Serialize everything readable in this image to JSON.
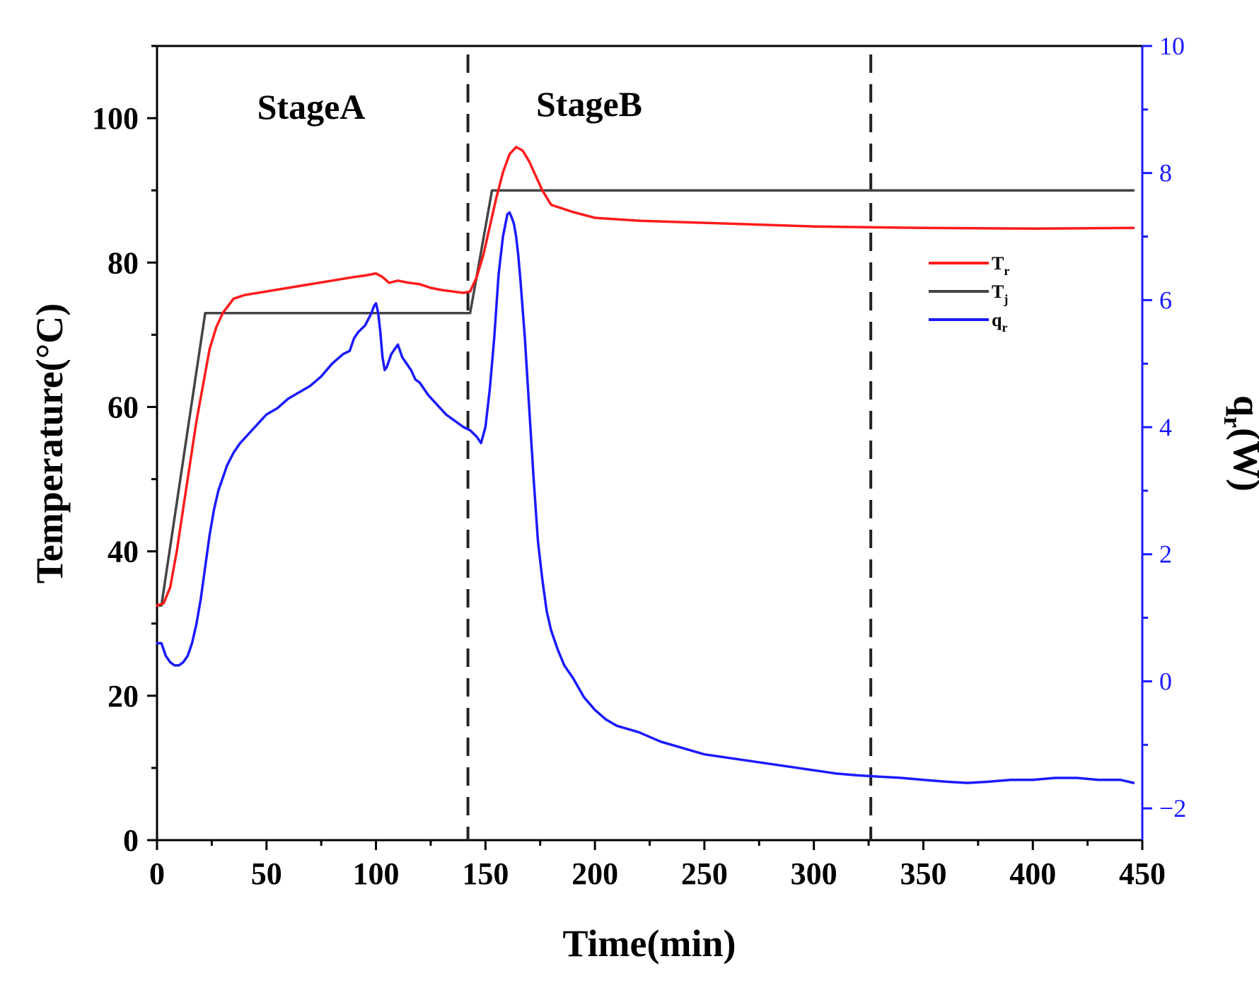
{
  "chart_data": {
    "type": "line",
    "xlabel": "Time(min)",
    "ylabel": "Temperature(°C)",
    "y2label_main": "q",
    "y2label_sub": "r",
    "y2label_unit": "(W)",
    "xlim": [
      0,
      450
    ],
    "ylim": [
      0,
      110
    ],
    "y2lim": [
      -2.5,
      10
    ],
    "x_ticks": [
      "0",
      "50",
      "100",
      "150",
      "200",
      "250",
      "300",
      "350",
      "400",
      "450"
    ],
    "y_ticks": [
      "0",
      "20",
      "40",
      "60",
      "80",
      "100"
    ],
    "y2_ticks": [
      "−2",
      "0",
      "2",
      "4",
      "6",
      "8",
      "10"
    ],
    "stage_dividers_x": [
      142,
      326
    ],
    "stage_labels": [
      "StageA",
      "StageB"
    ],
    "colors": {
      "Tr": "#ff1a1a",
      "Tj": "#444444",
      "qr": "#1a1aff",
      "divider": "#222222"
    },
    "legend": [
      {
        "key": "Tr",
        "main": "T",
        "sub": "r"
      },
      {
        "key": "Tj",
        "main": "T",
        "sub": "j"
      },
      {
        "key": "qr",
        "main": "q",
        "sub": "r"
      }
    ],
    "series": [
      {
        "name": "Tr",
        "axis": "left",
        "x": [
          0,
          3,
          6,
          9,
          12,
          15,
          18,
          21,
          24,
          27,
          30,
          35,
          40,
          50,
          60,
          70,
          80,
          90,
          95,
          100,
          103,
          106,
          110,
          115,
          120,
          125,
          130,
          135,
          140,
          143,
          146,
          149,
          152,
          155,
          158,
          161,
          164,
          167,
          170,
          173,
          176,
          180,
          190,
          200,
          220,
          250,
          300,
          350,
          400,
          446
        ],
        "y": [
          32.5,
          32.8,
          35,
          40,
          46,
          52,
          58,
          63,
          68,
          71,
          73,
          75,
          75.5,
          76,
          76.5,
          77,
          77.5,
          78,
          78.2,
          78.5,
          78,
          77.2,
          77.5,
          77.2,
          77,
          76.5,
          76.2,
          76,
          75.8,
          76,
          78,
          81,
          85,
          89,
          92.5,
          95,
          96,
          95.5,
          94,
          92,
          90,
          88,
          87,
          86.2,
          85.8,
          85.5,
          85,
          84.8,
          84.7,
          84.8
        ]
      },
      {
        "name": "Tj",
        "axis": "left",
        "x": [
          0,
          2,
          22,
          143,
          153,
          446
        ],
        "y": [
          32.5,
          32.5,
          73,
          73,
          90,
          90
        ]
      },
      {
        "name": "qr",
        "axis": "right",
        "x": [
          0,
          2,
          4,
          6,
          8,
          10,
          12,
          14,
          16,
          18,
          20,
          22,
          24,
          26,
          28,
          30,
          32,
          35,
          38,
          42,
          46,
          50,
          55,
          60,
          65,
          70,
          75,
          80,
          85,
          88,
          90,
          92,
          95,
          98,
          99,
          100,
          101,
          102,
          103,
          104,
          105,
          106,
          107,
          108,
          110,
          112,
          114,
          116,
          118,
          120,
          124,
          128,
          132,
          136,
          140,
          143,
          146,
          148,
          150,
          152,
          154,
          156,
          158,
          160,
          161,
          162,
          163,
          164,
          165,
          166,
          168,
          170,
          172,
          174,
          176,
          178,
          180,
          183,
          186,
          190,
          195,
          200,
          205,
          210,
          220,
          230,
          240,
          250,
          260,
          270,
          280,
          290,
          300,
          310,
          320,
          330,
          340,
          350,
          360,
          370,
          380,
          390,
          400,
          410,
          420,
          430,
          440,
          446
        ],
        "y": [
          0.6,
          0.6,
          0.4,
          0.3,
          0.25,
          0.25,
          0.3,
          0.4,
          0.6,
          0.9,
          1.3,
          1.8,
          2.3,
          2.7,
          3.0,
          3.2,
          3.4,
          3.6,
          3.75,
          3.9,
          4.05,
          4.2,
          4.3,
          4.45,
          4.55,
          4.65,
          4.8,
          5.0,
          5.15,
          5.2,
          5.4,
          5.5,
          5.6,
          5.8,
          5.9,
          5.95,
          5.8,
          5.5,
          5.1,
          4.9,
          4.95,
          5.05,
          5.15,
          5.2,
          5.3,
          5.1,
          5.0,
          4.9,
          4.75,
          4.7,
          4.5,
          4.35,
          4.2,
          4.1,
          4.0,
          3.95,
          3.85,
          3.75,
          4.0,
          4.6,
          5.4,
          6.4,
          7.0,
          7.35,
          7.38,
          7.3,
          7.2,
          7.0,
          6.7,
          6.3,
          5.4,
          4.3,
          3.2,
          2.2,
          1.6,
          1.1,
          0.8,
          0.5,
          0.25,
          0.05,
          -0.25,
          -0.45,
          -0.6,
          -0.7,
          -0.8,
          -0.95,
          -1.05,
          -1.15,
          -1.2,
          -1.25,
          -1.3,
          -1.35,
          -1.4,
          -1.45,
          -1.48,
          -1.5,
          -1.52,
          -1.55,
          -1.58,
          -1.6,
          -1.58,
          -1.55,
          -1.55,
          -1.52,
          -1.52,
          -1.55,
          -1.55,
          -1.6
        ]
      }
    ]
  }
}
